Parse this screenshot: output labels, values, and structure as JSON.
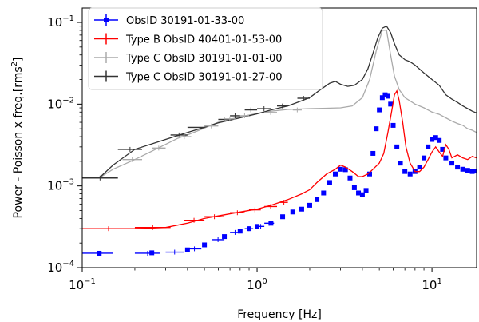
{
  "chart_data": {
    "type": "line",
    "xlabel": "Frequency [Hz]",
    "ylabel_main": "Power - Poisson x freq.[rms",
    "ylabel_sup": "2",
    "ylabel_end": "]",
    "xscale": "log",
    "yscale": "log",
    "xlim": [
      0.1,
      18
    ],
    "ylim": [
      0.0001,
      0.15
    ],
    "x_ticks": [
      {
        "value": 0.1,
        "base": "10",
        "exp": "−1"
      },
      {
        "value": 1,
        "base": "10",
        "exp": "0"
      },
      {
        "value": 10,
        "base": "10",
        "exp": "1"
      }
    ],
    "y_ticks": [
      {
        "value": 0.0001,
        "base": "10",
        "exp": "−4"
      },
      {
        "value": 0.001,
        "base": "10",
        "exp": "−3"
      },
      {
        "value": 0.01,
        "base": "10",
        "exp": "−2"
      },
      {
        "value": 0.1,
        "base": "10",
        "exp": "−1"
      }
    ],
    "legend_position": "top-left",
    "series": [
      {
        "name": "ObsID 30191-01-33-00",
        "color": "#0000ff",
        "style": "markers",
        "points": [
          [
            0.125,
            0.00015
          ],
          [
            0.25,
            0.000152
          ],
          [
            0.4,
            0.000165
          ],
          [
            0.5,
            0.00019
          ],
          [
            0.65,
            0.00024
          ],
          [
            0.8,
            0.00028
          ],
          [
            0.9,
            0.0003
          ],
          [
            1.0,
            0.00032
          ],
          [
            1.2,
            0.00035
          ],
          [
            1.4,
            0.00042
          ],
          [
            1.6,
            0.00048
          ],
          [
            1.8,
            0.00052
          ],
          [
            2.0,
            0.00058
          ],
          [
            2.2,
            0.00068
          ],
          [
            2.4,
            0.00082
          ],
          [
            2.6,
            0.0011
          ],
          [
            2.8,
            0.0014
          ],
          [
            3.0,
            0.0016
          ],
          [
            3.2,
            0.00158
          ],
          [
            3.4,
            0.00125
          ],
          [
            3.6,
            0.00095
          ],
          [
            3.8,
            0.00082
          ],
          [
            4.0,
            0.00078
          ],
          [
            4.2,
            0.00088
          ],
          [
            4.4,
            0.0014
          ],
          [
            4.6,
            0.0025
          ],
          [
            4.8,
            0.005
          ],
          [
            5.0,
            0.0085
          ],
          [
            5.2,
            0.012
          ],
          [
            5.4,
            0.013
          ],
          [
            5.6,
            0.0125
          ],
          [
            5.8,
            0.01
          ],
          [
            6.0,
            0.0055
          ],
          [
            6.3,
            0.003
          ],
          [
            6.6,
            0.0019
          ],
          [
            7.0,
            0.0015
          ],
          [
            7.5,
            0.0014
          ],
          [
            8.0,
            0.0015
          ],
          [
            8.5,
            0.0017
          ],
          [
            9.0,
            0.0022
          ],
          [
            9.5,
            0.003
          ],
          [
            10.0,
            0.0037
          ],
          [
            10.5,
            0.0039
          ],
          [
            11.0,
            0.0036
          ],
          [
            11.5,
            0.0028
          ],
          [
            12.0,
            0.0022
          ],
          [
            13.0,
            0.0019
          ],
          [
            14.0,
            0.0017
          ],
          [
            15.0,
            0.0016
          ],
          [
            16.0,
            0.00155
          ],
          [
            17.0,
            0.0015
          ],
          [
            18.0,
            0.00152
          ]
        ]
      },
      {
        "name": "Type B ObsID 40401-01-53-00",
        "color": "#ff0000",
        "style": "line",
        "points": [
          [
            0.1,
            0.0003
          ],
          [
            0.2,
            0.0003
          ],
          [
            0.3,
            0.00031
          ],
          [
            0.4,
            0.00035
          ],
          [
            0.5,
            0.0004
          ],
          [
            0.6,
            0.00043
          ],
          [
            0.8,
            0.00048
          ],
          [
            1.0,
            0.00052
          ],
          [
            1.2,
            0.00058
          ],
          [
            1.5,
            0.00068
          ],
          [
            1.8,
            0.0008
          ],
          [
            2.0,
            0.0009
          ],
          [
            2.2,
            0.0011
          ],
          [
            2.5,
            0.0014
          ],
          [
            2.8,
            0.0016
          ],
          [
            3.0,
            0.0018
          ],
          [
            3.2,
            0.0017
          ],
          [
            3.5,
            0.0015
          ],
          [
            3.8,
            0.0013
          ],
          [
            4.0,
            0.0013
          ],
          [
            4.3,
            0.0014
          ],
          [
            4.6,
            0.0016
          ],
          [
            5.0,
            0.0019
          ],
          [
            5.3,
            0.0025
          ],
          [
            5.6,
            0.0045
          ],
          [
            5.9,
            0.0085
          ],
          [
            6.1,
            0.013
          ],
          [
            6.3,
            0.0145
          ],
          [
            6.5,
            0.011
          ],
          [
            6.8,
            0.006
          ],
          [
            7.1,
            0.003
          ],
          [
            7.5,
            0.0019
          ],
          [
            8.0,
            0.0015
          ],
          [
            8.5,
            0.0015
          ],
          [
            9.0,
            0.0017
          ],
          [
            9.5,
            0.0021
          ],
          [
            10.0,
            0.0026
          ],
          [
            10.5,
            0.003
          ],
          [
            11.0,
            0.0026
          ],
          [
            11.5,
            0.0023
          ],
          [
            12.0,
            0.0032
          ],
          [
            12.5,
            0.0028
          ],
          [
            13.0,
            0.0022
          ],
          [
            14.0,
            0.0024
          ],
          [
            15.0,
            0.0022
          ],
          [
            16.0,
            0.0021
          ],
          [
            17.0,
            0.0023
          ],
          [
            18.0,
            0.0022
          ]
        ]
      },
      {
        "name": "Type C ObsID 30191-01-01-00",
        "color": "#aaaaaa",
        "style": "line",
        "points": [
          [
            0.125,
            0.00125
          ],
          [
            0.15,
            0.0016
          ],
          [
            0.2,
            0.0021
          ],
          [
            0.28,
            0.003
          ],
          [
            0.35,
            0.0038
          ],
          [
            0.4,
            0.0042
          ],
          [
            0.5,
            0.0051
          ],
          [
            0.6,
            0.006
          ],
          [
            0.8,
            0.007
          ],
          [
            1.0,
            0.0077
          ],
          [
            1.2,
            0.0082
          ],
          [
            1.5,
            0.0086
          ],
          [
            2.0,
            0.0088
          ],
          [
            2.5,
            0.0089
          ],
          [
            3.0,
            0.009
          ],
          [
            3.5,
            0.0095
          ],
          [
            4.0,
            0.012
          ],
          [
            4.4,
            0.02
          ],
          [
            4.8,
            0.045
          ],
          [
            5.2,
            0.08
          ],
          [
            5.5,
            0.08
          ],
          [
            5.8,
            0.04
          ],
          [
            6.1,
            0.022
          ],
          [
            6.5,
            0.015
          ],
          [
            7.0,
            0.012
          ],
          [
            8.0,
            0.01
          ],
          [
            9.0,
            0.009
          ],
          [
            10.0,
            0.008
          ],
          [
            11.0,
            0.0075
          ],
          [
            12.0,
            0.0068
          ],
          [
            13.0,
            0.0062
          ],
          [
            14.0,
            0.0058
          ],
          [
            15.0,
            0.0055
          ],
          [
            16.0,
            0.005
          ],
          [
            17.0,
            0.0048
          ],
          [
            18.0,
            0.0045
          ]
        ]
      },
      {
        "name": "Type C ObsID 30191-01-27-00",
        "color": "#333333",
        "style": "line",
        "points": [
          [
            0.1,
            0.00125
          ],
          [
            0.125,
            0.00125
          ],
          [
            0.15,
            0.0018
          ],
          [
            0.2,
            0.0028
          ],
          [
            0.3,
            0.0037
          ],
          [
            0.4,
            0.0045
          ],
          [
            0.5,
            0.0052
          ],
          [
            0.6,
            0.0059
          ],
          [
            0.8,
            0.0068
          ],
          [
            1.0,
            0.0076
          ],
          [
            1.2,
            0.0085
          ],
          [
            1.5,
            0.0095
          ],
          [
            1.8,
            0.011
          ],
          [
            2.0,
            0.012
          ],
          [
            2.3,
            0.015
          ],
          [
            2.6,
            0.018
          ],
          [
            2.8,
            0.019
          ],
          [
            3.0,
            0.0175
          ],
          [
            3.3,
            0.0165
          ],
          [
            3.6,
            0.017
          ],
          [
            4.0,
            0.02
          ],
          [
            4.3,
            0.027
          ],
          [
            4.6,
            0.042
          ],
          [
            4.9,
            0.065
          ],
          [
            5.2,
            0.085
          ],
          [
            5.5,
            0.09
          ],
          [
            5.8,
            0.075
          ],
          [
            6.1,
            0.055
          ],
          [
            6.5,
            0.04
          ],
          [
            7.0,
            0.035
          ],
          [
            7.5,
            0.033
          ],
          [
            8.0,
            0.03
          ],
          [
            9.0,
            0.024
          ],
          [
            10.0,
            0.02
          ],
          [
            11.0,
            0.017
          ],
          [
            12.0,
            0.013
          ],
          [
            13.0,
            0.0115
          ],
          [
            14.0,
            0.0105
          ],
          [
            15.0,
            0.0095
          ],
          [
            16.0,
            0.0088
          ],
          [
            17.0,
            0.0082
          ],
          [
            18.0,
            0.0078
          ]
        ]
      }
    ],
    "binned_errorbars": [
      {
        "series_index": 3,
        "segments": [
          [
            0.1,
            0.16,
            0.00125
          ],
          [
            0.16,
            0.22,
            0.0028
          ],
          [
            0.32,
            0.4,
            0.0042
          ],
          [
            0.4,
            0.5,
            0.0052
          ],
          [
            0.6,
            0.7,
            0.0065
          ],
          [
            0.7,
            0.8,
            0.0072
          ],
          [
            0.85,
            1.0,
            0.0085
          ],
          [
            1.0,
            1.2,
            0.0088
          ],
          [
            1.3,
            1.5,
            0.0095
          ],
          [
            1.7,
            2.0,
            0.0118
          ]
        ]
      },
      {
        "series_index": 2,
        "segments": [
          [
            0.17,
            0.22,
            0.0021
          ],
          [
            0.25,
            0.3,
            0.0029
          ],
          [
            0.35,
            0.42,
            0.004
          ],
          [
            0.5,
            0.6,
            0.0054
          ],
          [
            0.65,
            0.75,
            0.0066
          ],
          [
            0.8,
            0.9,
            0.0072
          ],
          [
            1.1,
            1.3,
            0.0079
          ],
          [
            1.6,
            1.8,
            0.0085
          ]
        ]
      },
      {
        "series_index": 1,
        "segments": [
          [
            0.1,
            0.2,
            0.0003
          ],
          [
            0.2,
            0.32,
            0.00031
          ],
          [
            0.38,
            0.5,
            0.00038
          ],
          [
            0.5,
            0.65,
            0.00042
          ],
          [
            0.7,
            0.85,
            0.00047
          ],
          [
            0.9,
            1.05,
            0.00051
          ],
          [
            1.1,
            1.3,
            0.00056
          ],
          [
            1.35,
            1.5,
            0.00063
          ]
        ]
      },
      {
        "series_index": 0,
        "segments": [
          [
            0.1,
            0.15,
            0.00015
          ],
          [
            0.2,
            0.28,
            0.00015
          ],
          [
            0.3,
            0.38,
            0.000155
          ],
          [
            0.4,
            0.48,
            0.00017
          ],
          [
            0.55,
            0.65,
            0.00022
          ],
          [
            0.7,
            0.8,
            0.00027
          ],
          [
            0.85,
            0.95,
            0.0003
          ],
          [
            1.0,
            1.1,
            0.00032
          ],
          [
            1.1,
            1.25,
            0.00035
          ]
        ]
      }
    ]
  }
}
